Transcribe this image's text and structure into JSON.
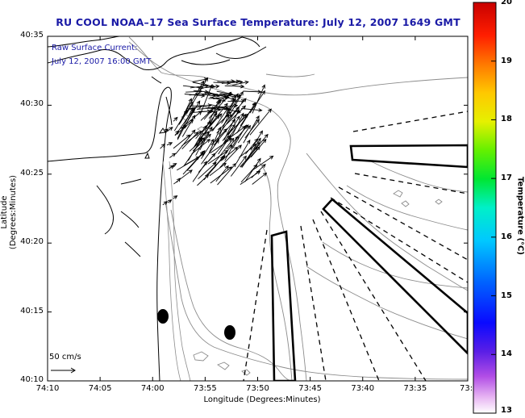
{
  "title": "RU COOL  NOAA–17  Sea Surface Temperature:  July 12, 2007 1649 GMT",
  "annotation": {
    "line1": "Raw Surface Current:",
    "line2": "July 12, 2007 16:00 GMT"
  },
  "axes": {
    "xlabel": "Longitude (Degrees:Minutes)",
    "ylabel": "Latitude (Degrees:Minutes)",
    "xticks": [
      "74:10",
      "74:05",
      "74:00",
      "73:55",
      "73:50",
      "73:45",
      "73:40",
      "73:35",
      "73:3"
    ],
    "yticks": [
      "40:35",
      "40:30",
      "40:25",
      "40:20",
      "40:15",
      "40:10"
    ]
  },
  "colorbar": {
    "label": "Temperature (°C)",
    "ticks": [
      "20",
      "19",
      "18",
      "17",
      "16",
      "15",
      "14",
      "13"
    ],
    "min": 13,
    "max": 20
  },
  "scale_label": "50 cm/s",
  "colors": {
    "title_text": "#1a1aa6",
    "vectors": "#000000",
    "contours": "#888888",
    "coastline": "#000000"
  }
}
